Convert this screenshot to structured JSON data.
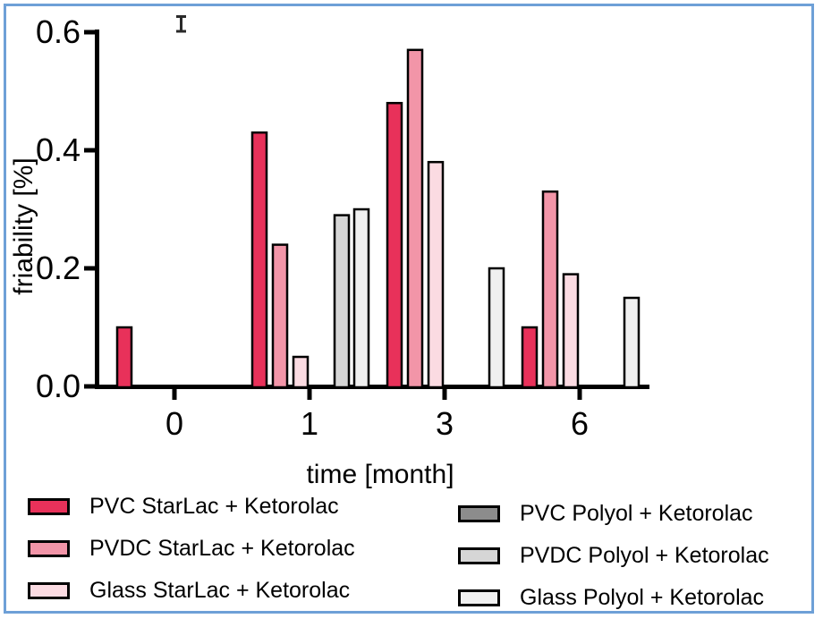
{
  "figure": {
    "frame_border_color": "#6EA0D7",
    "background_color": "#FFFFFF"
  },
  "icons": {
    "cursor": "text-ibeam-cursor"
  },
  "chart_data": {
    "type": "bar",
    "title": "",
    "xlabel": "time [month]",
    "ylabel": "friability [%]",
    "categories": [
      0,
      1,
      3,
      6
    ],
    "x_tick_labels": [
      "0",
      "1",
      "3",
      "6"
    ],
    "y_tick_labels": [
      "0.0",
      "0.2",
      "0.4",
      "0.6"
    ],
    "ylim": [
      0,
      0.6
    ],
    "y_tick_step": 0.2,
    "grid": false,
    "bar_border_color": "#000000",
    "legend_position": "bottom-two-columns",
    "series": [
      {
        "name": "PVC StarLac + Ketorolac",
        "color": "#E8315A",
        "values": [
          0.1,
          0.43,
          0.48,
          0.1
        ]
      },
      {
        "name": "PVDC StarLac + Ketorolac",
        "color": "#F295A8",
        "values": [
          0,
          0.24,
          0.57,
          0.33
        ]
      },
      {
        "name": "Glass StarLac + Ketorolac",
        "color": "#FBDBE2",
        "values": [
          0,
          0.05,
          0.38,
          0.19
        ]
      },
      {
        "name": "PVC Polyol + Ketorolac",
        "color": "#8C8C8C",
        "values": [
          0,
          0,
          0,
          0
        ]
      },
      {
        "name": "PVDC Polyol + Ketorolac",
        "color": "#D6D6D6",
        "values": [
          0,
          0.29,
          0,
          0
        ]
      },
      {
        "name": "Glass Polyol + Ketorolac",
        "color": "#F0F0F0",
        "values": [
          0,
          0.3,
          0.2,
          0.15
        ]
      }
    ]
  }
}
